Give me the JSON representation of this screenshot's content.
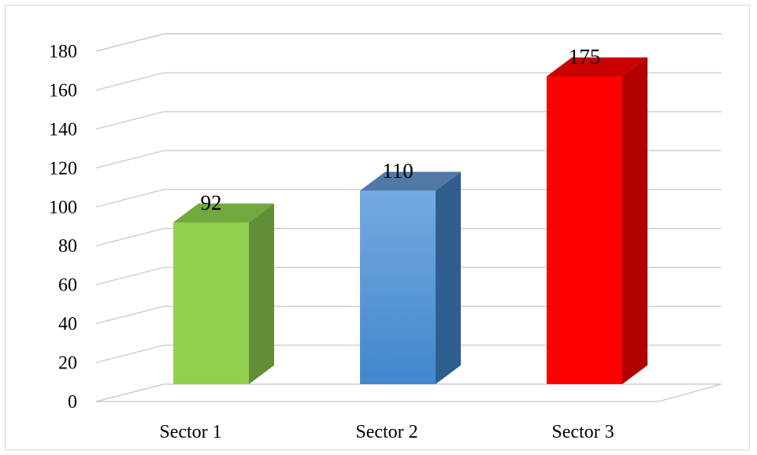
{
  "chart_data": {
    "type": "bar",
    "title": "",
    "xlabel": "",
    "ylabel": "",
    "categories": [
      "Sector 1",
      "Sector 2",
      "Sector 3"
    ],
    "values": [
      92,
      110,
      175
    ],
    "ylim": [
      0,
      180
    ],
    "y_ticks": [
      0,
      20,
      40,
      60,
      80,
      100,
      120,
      140,
      160,
      180
    ],
    "y_tick_labels": [
      "0",
      "20",
      "40",
      "60",
      "80",
      "100",
      "120",
      "140",
      "160",
      "180"
    ],
    "data_labels": [
      "92",
      "110",
      "175"
    ],
    "bar_colors": [
      "#92d050",
      "#5b9bd5",
      "#ff0000"
    ],
    "grid": true,
    "legend": "none",
    "style": "3d-column"
  }
}
